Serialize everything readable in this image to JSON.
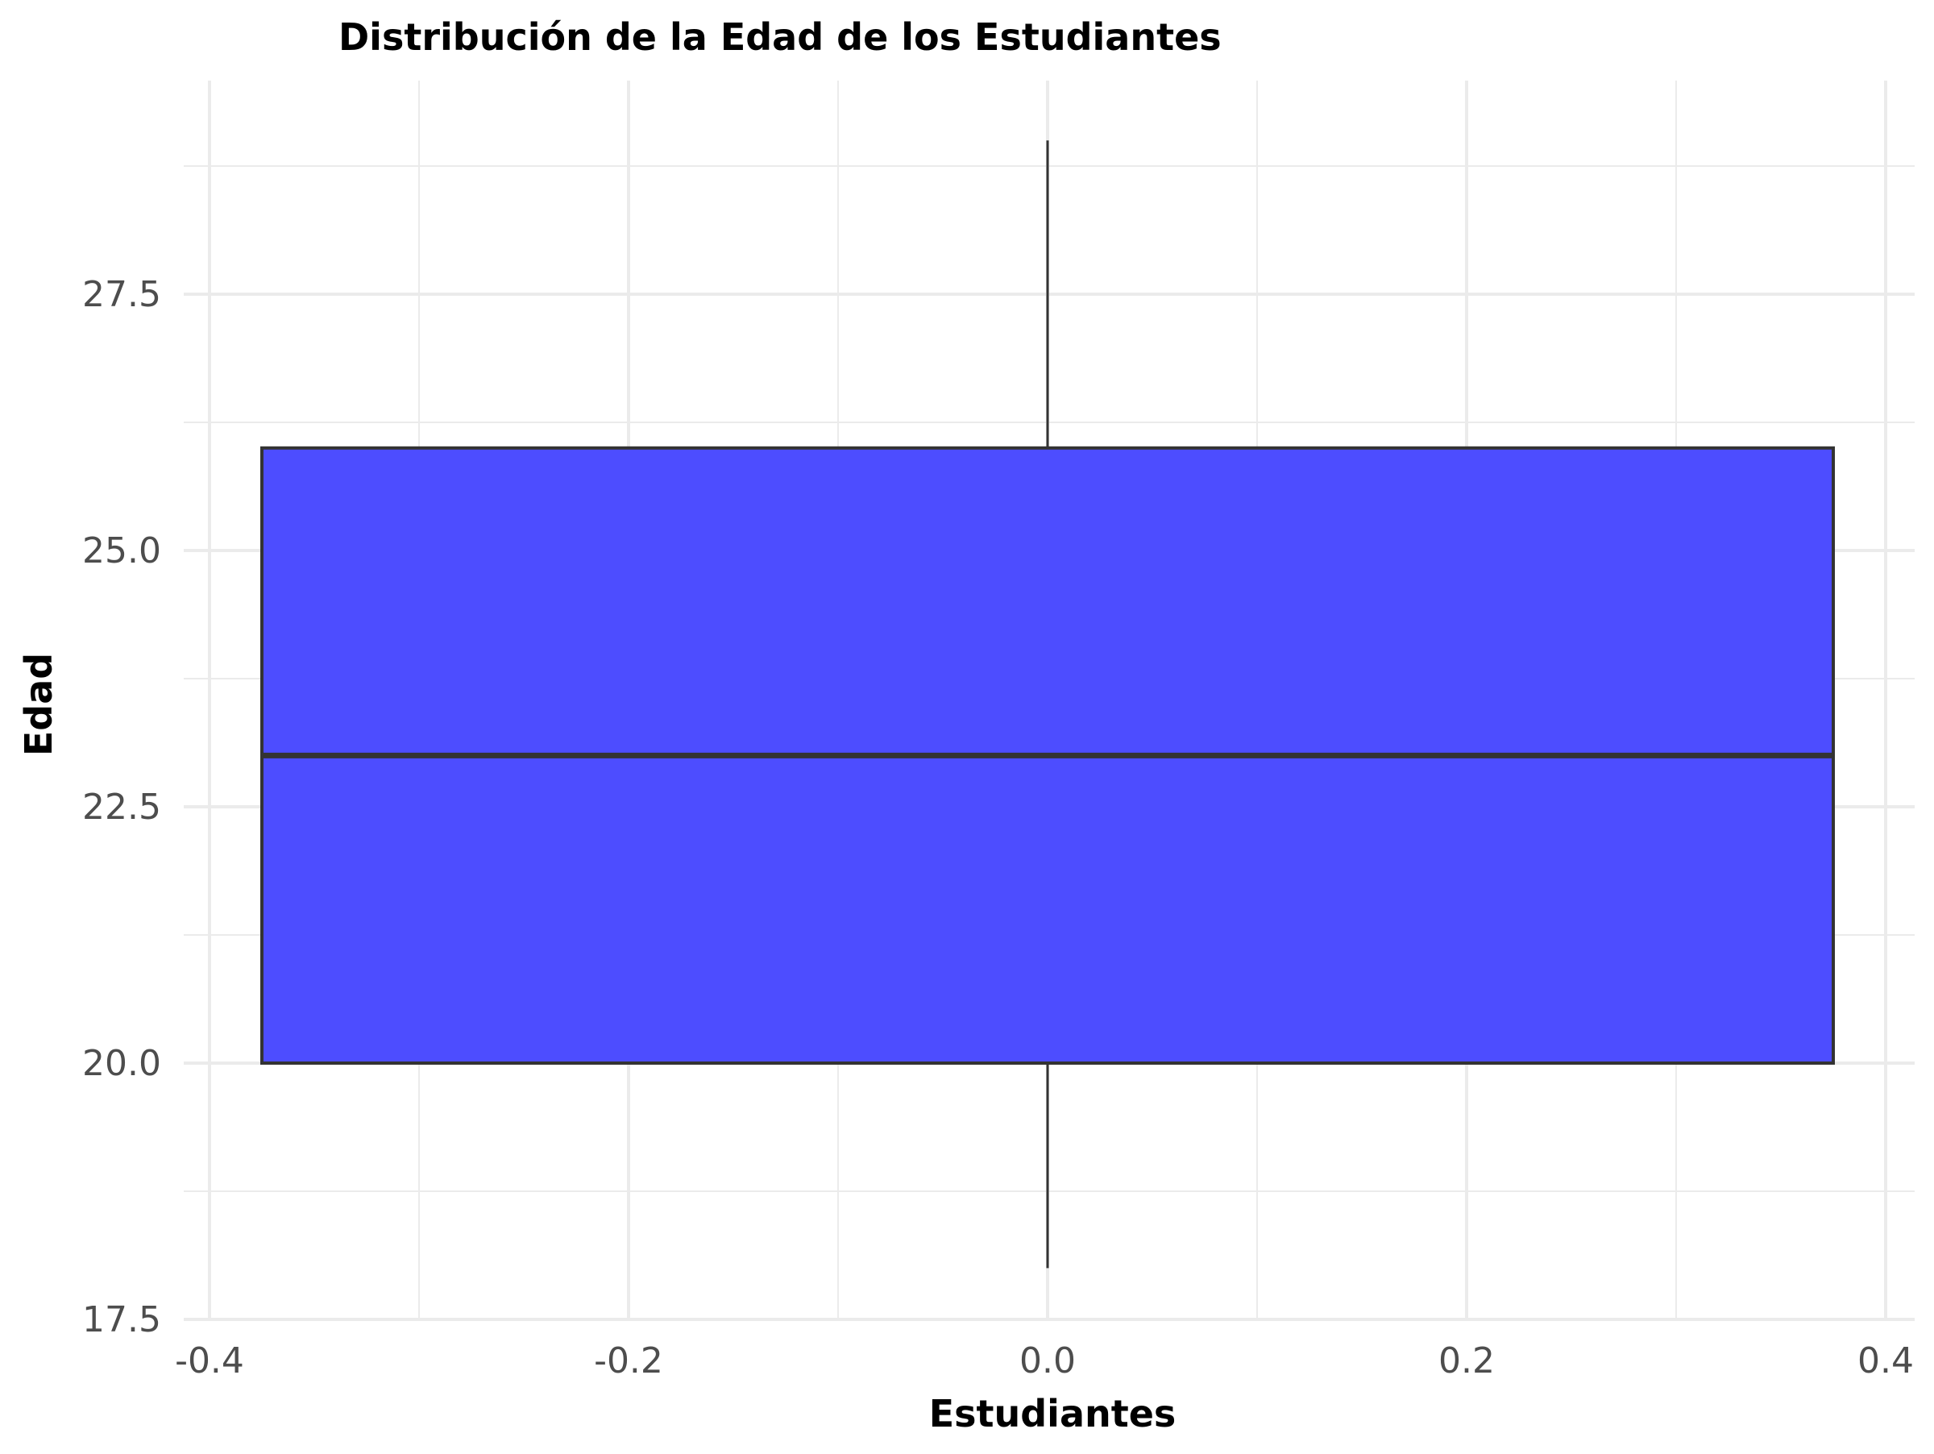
{
  "chart_data": {
    "type": "boxplot",
    "title": "Distribución de la Edad de los Estudiantes",
    "xlabel": "Estudiantes",
    "ylabel": "Edad",
    "xlim": [
      -0.4,
      0.4
    ],
    "ylim": [
      17.5,
      28.75
    ],
    "x_ticks": [
      -0.4,
      -0.2,
      0.0,
      0.2,
      0.4
    ],
    "x_tick_labels": [
      "-0.4",
      "-0.2",
      "0.0",
      "0.2",
      "0.4"
    ],
    "y_ticks": [
      17.5,
      20.0,
      22.5,
      25.0,
      27.5
    ],
    "y_tick_labels": [
      "17.5",
      "20.0",
      "22.5",
      "25.0",
      "27.5"
    ],
    "grid": true,
    "box": {
      "x_center": 0.0,
      "x_left": -0.375,
      "x_right": 0.375,
      "whisker_low": 18,
      "q1": 20,
      "median": 23,
      "q3": 26,
      "whisker_high": 29
    },
    "colors": {
      "box_fill": "#4d4dff",
      "box_outline": "#333333",
      "grid": "#ebebeb",
      "tick_text": "#4d4d4d"
    }
  }
}
